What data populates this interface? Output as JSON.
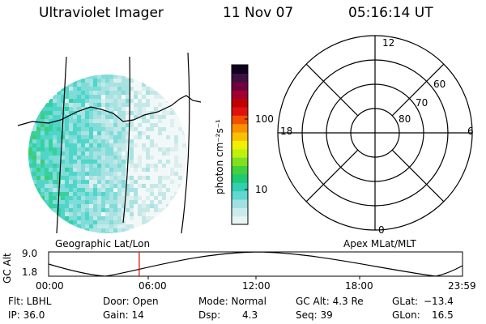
{
  "header": {
    "instrument": "Ultraviolet Imager",
    "date": "11 Nov 07",
    "time": "05:16:14 UT"
  },
  "image_panel": {
    "label": "Geographic Lat/Lon"
  },
  "colorbar": {
    "unit_label": "photon cm⁻²s⁻¹",
    "ticks": [
      "100",
      "10"
    ],
    "colors": [
      "#e8f4f4",
      "#c8ecec",
      "#a0e0e0",
      "#60d8d0",
      "#30d0b0",
      "#20c870",
      "#40d040",
      "#80e020",
      "#c0f010",
      "#f0f000",
      "#f8c000",
      "#f89000",
      "#f05000",
      "#e01010",
      "#c00000",
      "#a00030",
      "#700040",
      "#401040",
      "#100020"
    ]
  },
  "polar_plot": {
    "label": "Apex MLat/MLT",
    "mlt_labels": {
      "top": "12",
      "left": "18",
      "right": "6",
      "bottom": "0"
    },
    "lat_labels": [
      "60",
      "70",
      "80"
    ]
  },
  "orbit_plot": {
    "ylabel": "GC Alt",
    "yticks": [
      "9.0",
      "1.8"
    ],
    "xticks": [
      "00:00",
      "06:00",
      "12:00",
      "18:00",
      "23:59"
    ],
    "current_time_fraction": 0.219
  },
  "info": {
    "flt": "Flt: LBHL",
    "ip": "IP: 36.0",
    "door": "Door: Open",
    "gain": "Gain: 14",
    "mode": "Mode: Normal",
    "dsp_label": "Dsp:",
    "dsp_value": "4.3",
    "gc_alt": "GC Alt: 4.3 Re",
    "seq": "Seq: 39",
    "glat_label": "GLat:",
    "glat_value": "−13.4",
    "glon_label": "GLon:",
    "glon_value": "16.5"
  }
}
